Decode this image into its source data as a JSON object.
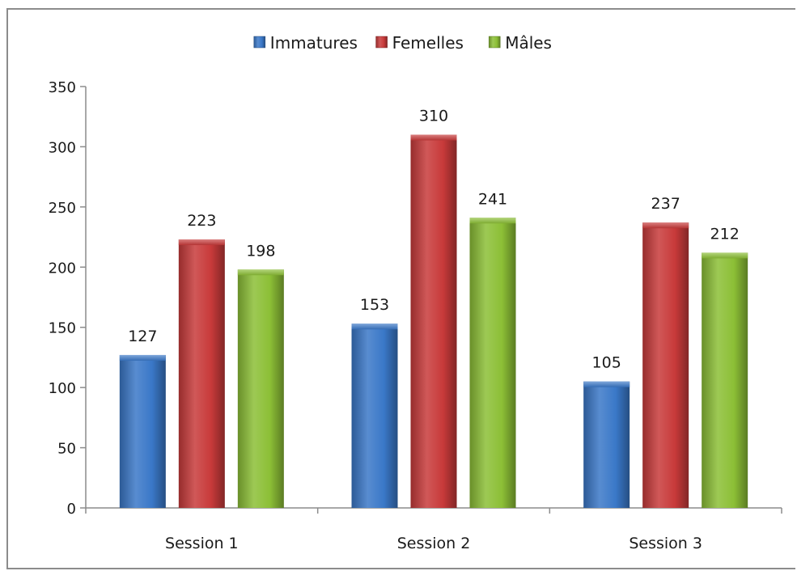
{
  "chart_data": {
    "type": "bar",
    "title": "",
    "xlabel": "",
    "ylabel": "",
    "categories": [
      "Session 1",
      "Session 2",
      "Session 3"
    ],
    "series": [
      {
        "name": "Immatures",
        "values": [
          127,
          153,
          105
        ],
        "color": "#3a78c8"
      },
      {
        "name": "Femelles",
        "values": [
          223,
          310,
          237
        ],
        "color": "#c83a3a"
      },
      {
        "name": "Mâles",
        "values": [
          198,
          241,
          212
        ],
        "color": "#8cbf36"
      }
    ],
    "ylim": [
      0,
      350
    ],
    "yticks": [
      0,
      50,
      100,
      150,
      200,
      250,
      300,
      350
    ],
    "legend": "top-center",
    "grid": false
  }
}
